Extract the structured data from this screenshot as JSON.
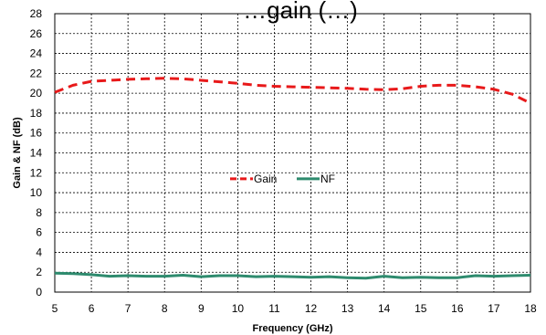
{
  "chart_data": {
    "type": "line",
    "title": "…gain (…)",
    "xlabel": "Frequency (GHz)",
    "ylabel": "Gain & NF (dB)",
    "xlim": [
      5,
      18
    ],
    "ylim": [
      0,
      28
    ],
    "x_ticks": [
      "5",
      "6",
      "7",
      "8",
      "9",
      "10",
      "11",
      "12",
      "13",
      "14",
      "15",
      "16",
      "17",
      "18"
    ],
    "y_ticks": [
      "0",
      "2",
      "4",
      "6",
      "8",
      "10",
      "12",
      "14",
      "16",
      "18",
      "20",
      "22",
      "24",
      "26",
      "28"
    ],
    "grid": true,
    "legend_position": "center",
    "series": [
      {
        "name": "Gain",
        "color": "#e8191a",
        "dash": "dashed",
        "x": [
          5,
          5.5,
          6,
          6.5,
          7,
          7.5,
          8,
          8.5,
          9,
          9.5,
          10,
          10.5,
          11,
          11.5,
          12,
          12.5,
          13,
          13.5,
          14,
          14.5,
          15,
          15.5,
          16,
          16.5,
          17,
          17.5,
          18
        ],
        "y": [
          20.1,
          20.8,
          21.2,
          21.3,
          21.4,
          21.45,
          21.5,
          21.45,
          21.3,
          21.15,
          21.0,
          20.8,
          20.7,
          20.65,
          20.6,
          20.55,
          20.5,
          20.4,
          20.35,
          20.45,
          20.7,
          20.8,
          20.8,
          20.65,
          20.4,
          19.9,
          19.0
        ]
      },
      {
        "name": "NF",
        "color": "#2e8b6e",
        "dash": "solid",
        "x": [
          5,
          5.5,
          6,
          6.5,
          7,
          7.5,
          8,
          8.5,
          9,
          9.5,
          10,
          10.5,
          11,
          11.5,
          12,
          12.5,
          13,
          13.5,
          14,
          14.5,
          15,
          15.5,
          16,
          16.5,
          17,
          17.5,
          18
        ],
        "y": [
          1.9,
          1.85,
          1.75,
          1.6,
          1.65,
          1.6,
          1.6,
          1.7,
          1.55,
          1.65,
          1.65,
          1.55,
          1.6,
          1.55,
          1.5,
          1.55,
          1.45,
          1.4,
          1.6,
          1.45,
          1.5,
          1.45,
          1.45,
          1.65,
          1.6,
          1.65,
          1.7
        ]
      }
    ]
  }
}
